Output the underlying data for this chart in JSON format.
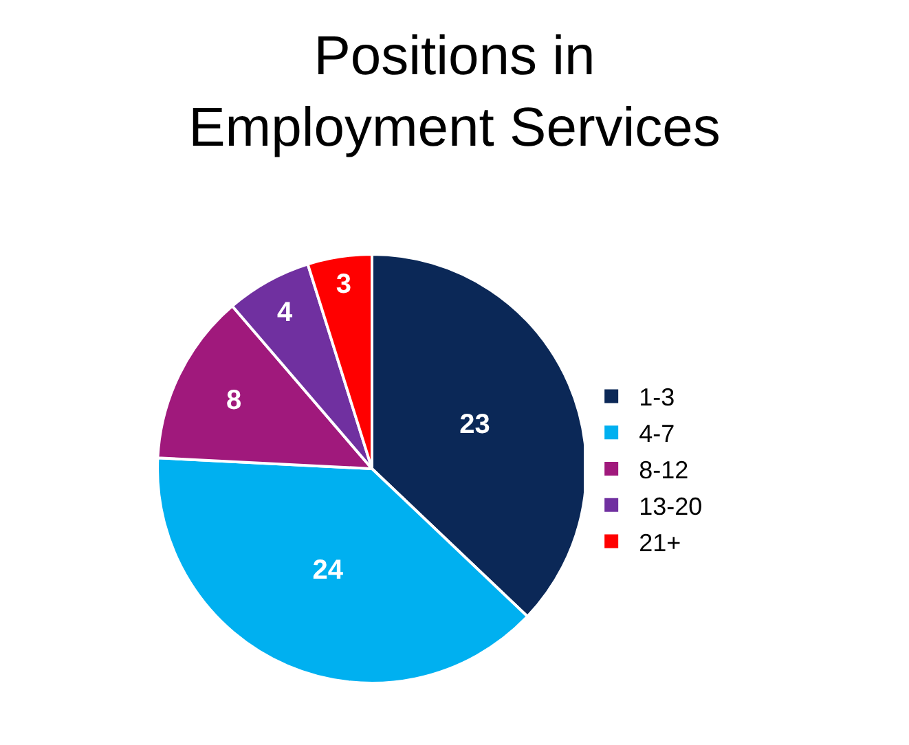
{
  "chart_data": {
    "type": "pie",
    "title": "Positions in\nEmployment Services",
    "categories": [
      "1-3",
      "4-7",
      "8-12",
      "13-20",
      "21+"
    ],
    "values": [
      23,
      24,
      8,
      4,
      3
    ],
    "colors": [
      "#0b2857",
      "#00b0f0",
      "#a0197c",
      "#7030a0",
      "#ff0000"
    ],
    "data_labels": true,
    "legend": "right"
  }
}
